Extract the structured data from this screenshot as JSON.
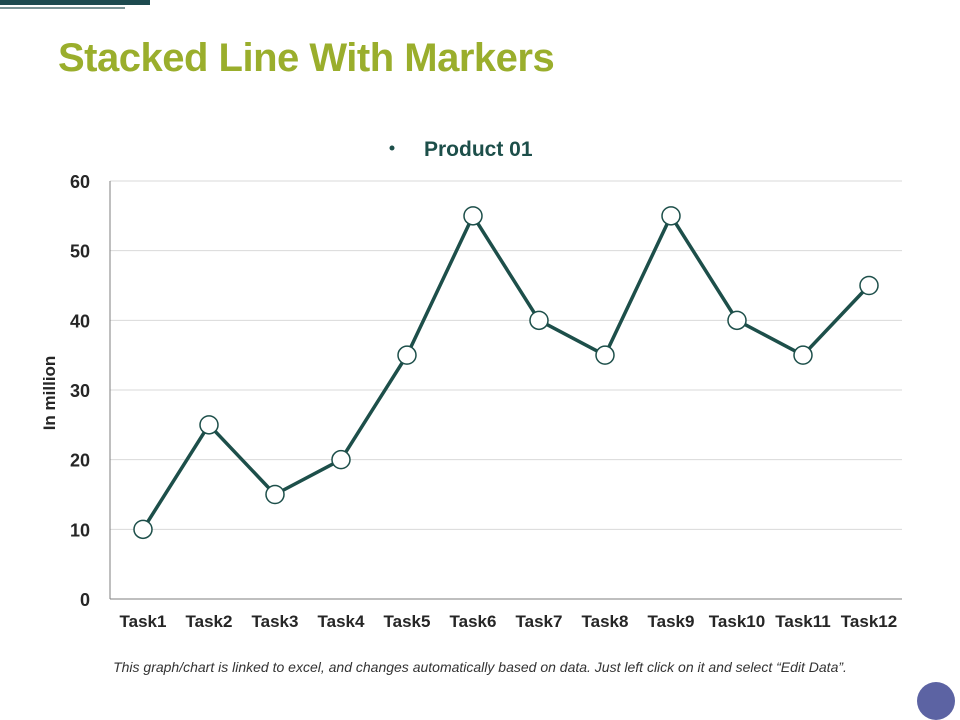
{
  "slide": {
    "title": "Stacked Line With Markers",
    "footnote": "This graph/chart is linked to excel, and changes automatically based on data. Just left click on it and select “Edit Data”."
  },
  "colors": {
    "title": "#9aae2c",
    "series": "#1d4f4a",
    "marker_fill": "#ffffff",
    "grid": "#d9d9d9",
    "axis": "#7f7f7f",
    "text": "#262626",
    "nav_dot": "#5c63a3"
  },
  "chart_data": {
    "type": "line",
    "categories": [
      "Task1",
      "Task2",
      "Task3",
      "Task4",
      "Task5",
      "Task6",
      "Task7",
      "Task8",
      "Task9",
      "Task10",
      "Task11",
      "Task12"
    ],
    "series": [
      {
        "name": "Product 01",
        "values": [
          10,
          25,
          15,
          20,
          35,
          55,
          40,
          35,
          55,
          40,
          35,
          45
        ]
      }
    ],
    "ylabel": "In million",
    "xlabel": "",
    "ylim": [
      0,
      60
    ],
    "yticks": [
      0,
      10,
      20,
      30,
      40,
      50,
      60
    ],
    "grid": true,
    "legend": "top-center",
    "markers": true
  }
}
